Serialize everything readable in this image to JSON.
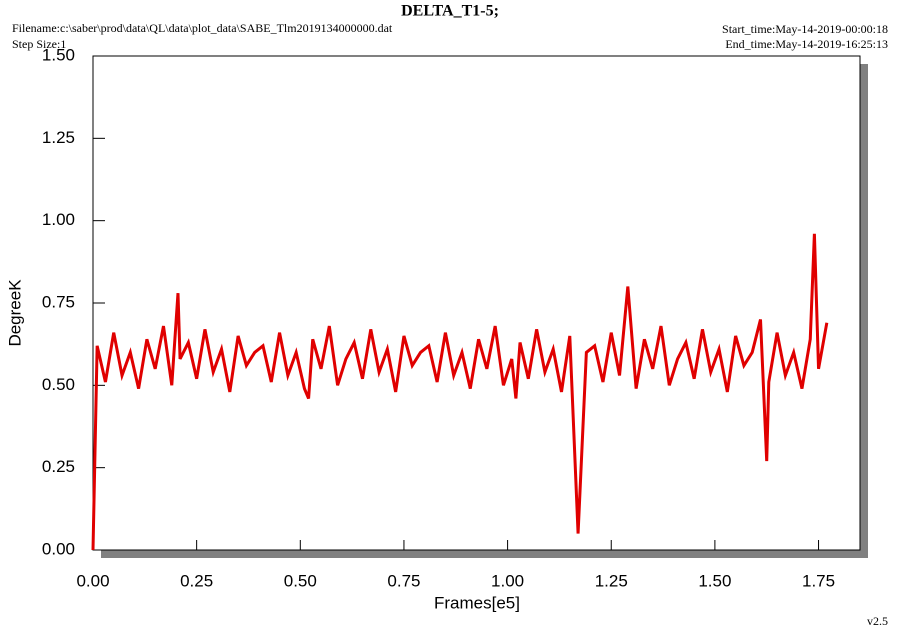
{
  "chart_data": {
    "type": "line",
    "title": "DELTA_T1-5;",
    "filename": "Filename:c:\\saber\\prod\\data\\QL\\data\\plot_data\\SABE_Tlm2019134000000.dat",
    "step_size": "Step Size:1",
    "start_time": "Start_time:May-14-2019-00:00:18",
    "end_time": "End_time:May-14-2019-16:25:13",
    "version": "v2.5",
    "x_label": "Frames[e5]",
    "y_label": "DegreeK",
    "xlim": [
      0,
      1.85
    ],
    "ylim": [
      0,
      1.5
    ],
    "xticks": [
      {
        "value": 0,
        "label": "0.00"
      },
      0.25,
      {
        "value": 0.5,
        "label": "0.50"
      },
      0.75,
      {
        "value": 1,
        "label": "1.00"
      },
      1.25,
      {
        "value": 1.5,
        "label": "1.50"
      },
      1.75
    ],
    "yticks": [
      {
        "value": 0,
        "label": "0.00"
      },
      0.25,
      {
        "value": 0.5,
        "label": "0.50"
      },
      0.75,
      {
        "value": 1,
        "label": "1.00"
      },
      1.25,
      {
        "value": 1.5,
        "label": "1.50"
      }
    ],
    "x": [
      0,
      0.01,
      0.03,
      0.05,
      0.07,
      0.09,
      0.11,
      0.13,
      0.15,
      0.17,
      0.19,
      0.205,
      0.21,
      0.23,
      0.25,
      0.27,
      0.29,
      0.31,
      0.33,
      0.35,
      0.37,
      0.39,
      0.41,
      0.43,
      0.45,
      0.47,
      0.49,
      0.51,
      0.52,
      0.53,
      0.55,
      0.57,
      0.59,
      0.61,
      0.63,
      0.65,
      0.67,
      0.69,
      0.71,
      0.73,
      0.75,
      0.77,
      0.79,
      0.81,
      0.83,
      0.85,
      0.87,
      0.89,
      0.91,
      0.93,
      0.95,
      0.97,
      0.99,
      1.01,
      1.02,
      1.03,
      1.05,
      1.07,
      1.09,
      1.11,
      1.13,
      1.15,
      1.17,
      1.19,
      1.21,
      1.23,
      1.25,
      1.27,
      1.29,
      1.31,
      1.33,
      1.35,
      1.37,
      1.39,
      1.41,
      1.43,
      1.45,
      1.47,
      1.49,
      1.51,
      1.53,
      1.55,
      1.57,
      1.59,
      1.61,
      1.625,
      1.63,
      1.65,
      1.67,
      1.69,
      1.71,
      1.73,
      1.74,
      1.75,
      1.77
    ],
    "series": [
      {
        "color": "#e00000",
        "values": [
          0.0,
          0.62,
          0.51,
          0.66,
          0.53,
          0.6,
          0.49,
          0.64,
          0.55,
          0.68,
          0.5,
          0.78,
          0.58,
          0.63,
          0.52,
          0.67,
          0.54,
          0.61,
          0.48,
          0.65,
          0.56,
          0.6,
          0.62,
          0.51,
          0.66,
          0.53,
          0.6,
          0.49,
          0.46,
          0.64,
          0.55,
          0.68,
          0.5,
          0.58,
          0.63,
          0.52,
          0.67,
          0.54,
          0.61,
          0.48,
          0.65,
          0.56,
          0.6,
          0.62,
          0.51,
          0.66,
          0.53,
          0.6,
          0.49,
          0.64,
          0.55,
          0.68,
          0.5,
          0.58,
          0.46,
          0.63,
          0.52,
          0.67,
          0.54,
          0.61,
          0.48,
          0.65,
          0.05,
          0.6,
          0.62,
          0.51,
          0.66,
          0.53,
          0.8,
          0.49,
          0.64,
          0.55,
          0.68,
          0.5,
          0.58,
          0.63,
          0.52,
          0.67,
          0.54,
          0.61,
          0.48,
          0.65,
          0.56,
          0.6,
          0.7,
          0.27,
          0.51,
          0.66,
          0.53,
          0.6,
          0.49,
          0.64,
          0.96,
          0.55,
          0.69
        ]
      }
    ]
  }
}
